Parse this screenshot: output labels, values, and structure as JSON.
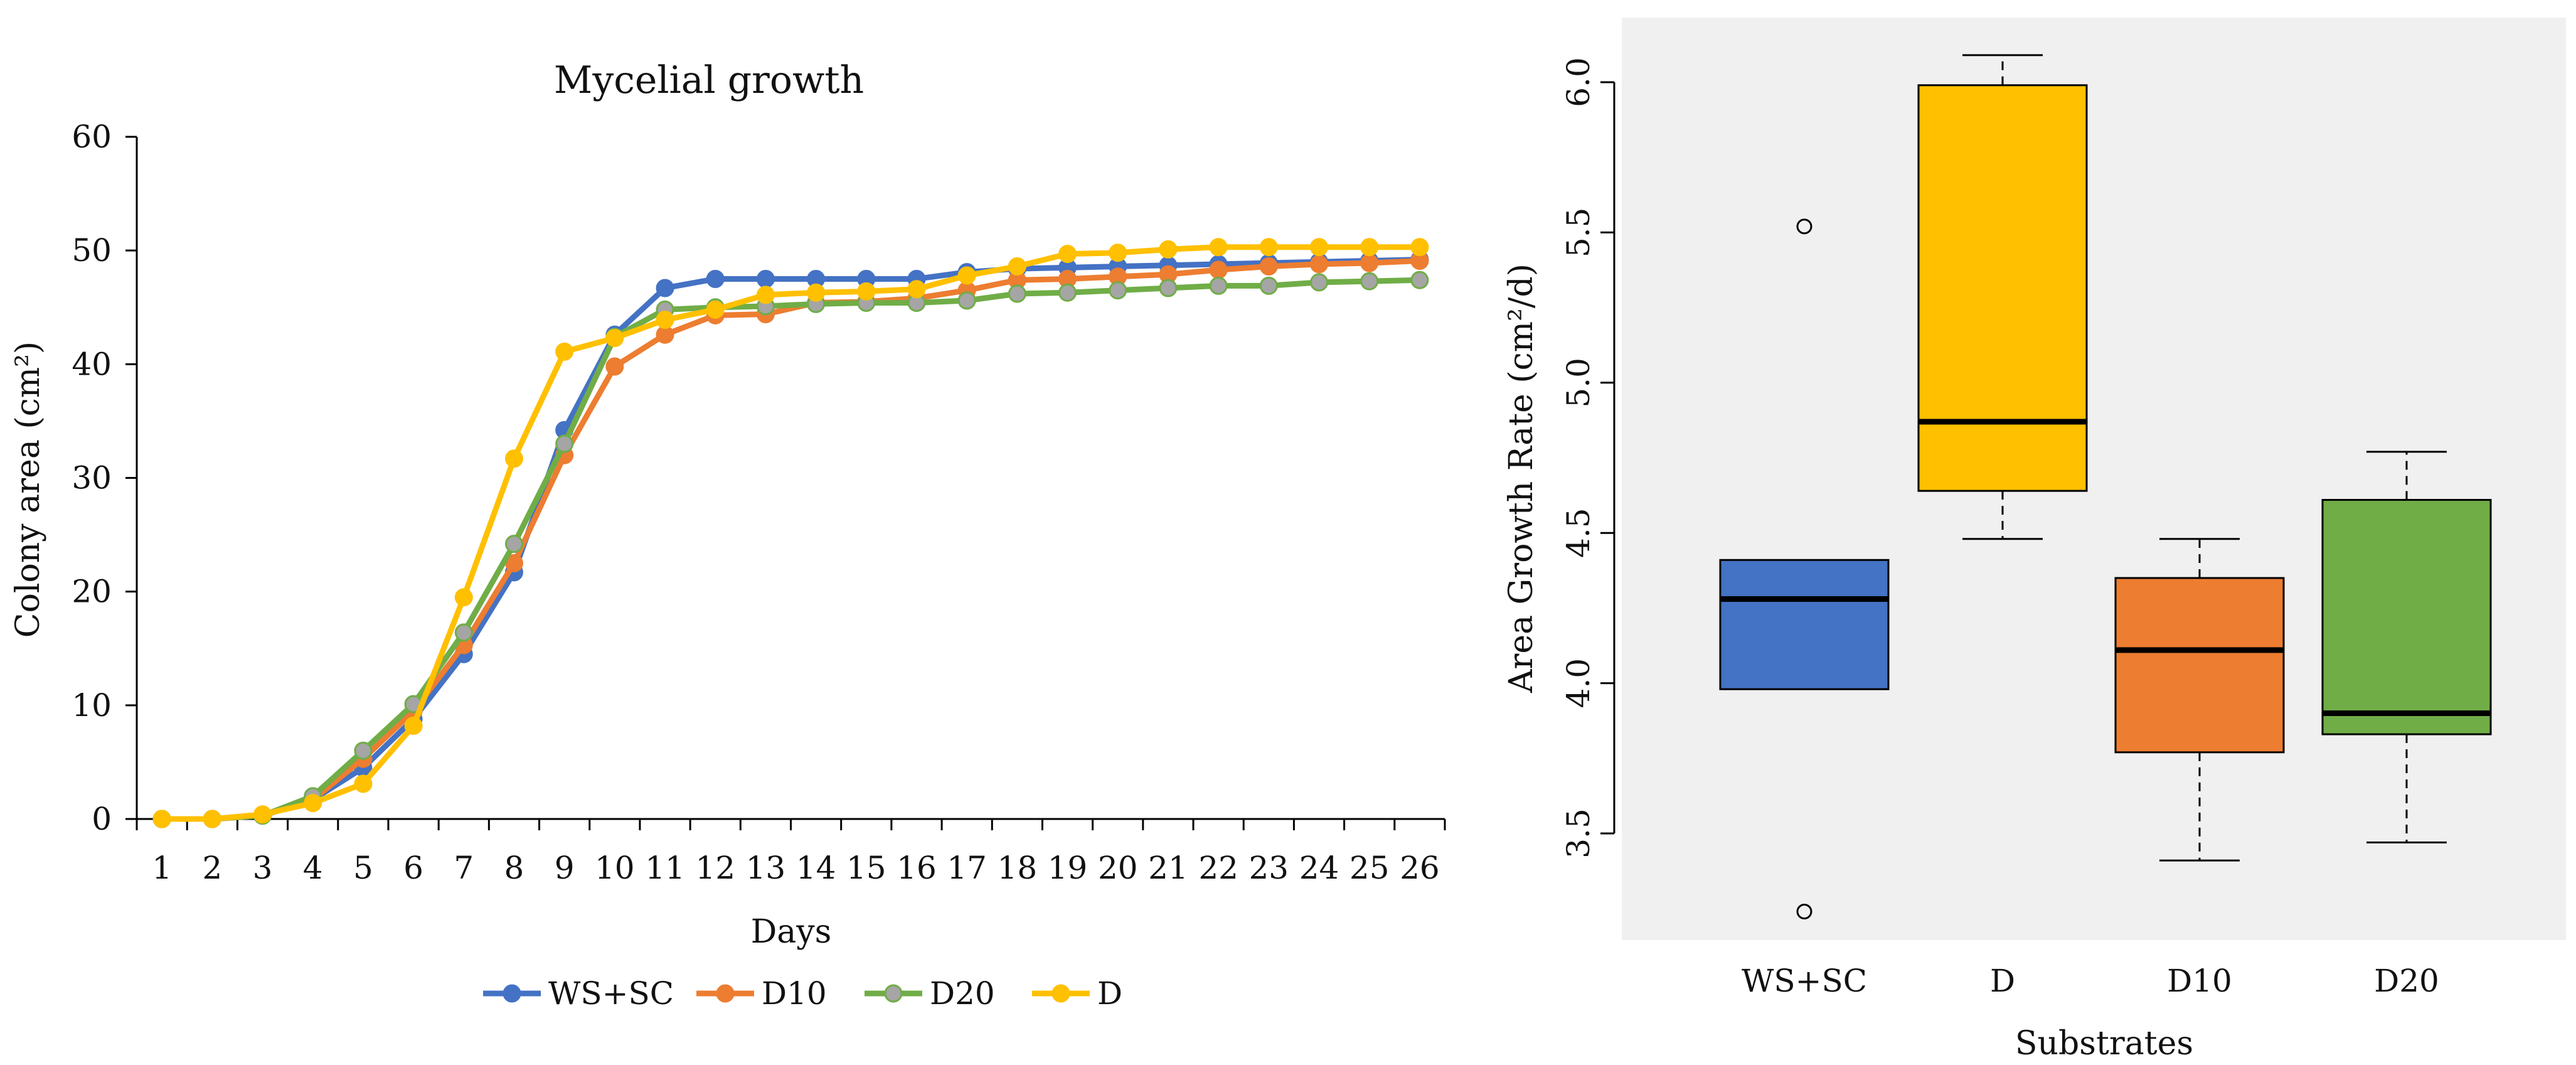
{
  "chart_data": [
    {
      "type": "line",
      "title": "Mycelial growth",
      "xlabel": "Days",
      "ylabel": "Colony area (cm²)",
      "ylim": [
        0,
        60
      ],
      "yticks": [
        0,
        10,
        20,
        30,
        40,
        50,
        60
      ],
      "x": [
        1,
        2,
        3,
        4,
        5,
        6,
        7,
        8,
        9,
        10,
        11,
        12,
        13,
        14,
        15,
        16,
        17,
        18,
        19,
        20,
        21,
        22,
        23,
        24,
        25,
        26
      ],
      "grid": false,
      "legend": "bottom",
      "series": [
        {
          "name": "WS+SC",
          "color": "#4472C4",
          "values": [
            0,
            0,
            0.3,
            1.7,
            4.5,
            8.8,
            14.5,
            21.7,
            34.2,
            42.6,
            46.7,
            47.5,
            47.5,
            47.5,
            47.5,
            47.5,
            48.1,
            48.4,
            48.5,
            48.6,
            48.7,
            48.8,
            48.9,
            49.0,
            49.1,
            49.2
          ]
        },
        {
          "name": "D10",
          "color": "#ED7D31",
          "values": [
            0,
            0,
            0.3,
            1.7,
            5.3,
            9.5,
            15.3,
            22.5,
            32.0,
            39.8,
            42.6,
            44.3,
            44.4,
            45.4,
            45.5,
            45.8,
            46.5,
            47.4,
            47.5,
            47.7,
            47.9,
            48.3,
            48.6,
            48.8,
            48.9,
            49.1
          ]
        },
        {
          "name": "D20",
          "color": "#70AD47",
          "marker": "#A5A5A5",
          "values": [
            0,
            0,
            0.3,
            2.0,
            6.0,
            10.1,
            16.4,
            24.2,
            33.0,
            42.4,
            44.8,
            45.0,
            45.1,
            45.3,
            45.4,
            45.4,
            45.6,
            46.2,
            46.3,
            46.5,
            46.7,
            46.9,
            46.9,
            47.2,
            47.3,
            47.4
          ]
        },
        {
          "name": "D",
          "color": "#FFC000",
          "values": [
            0,
            0,
            0.4,
            1.4,
            3.1,
            8.2,
            19.5,
            31.7,
            41.1,
            42.3,
            43.9,
            44.8,
            46.1,
            46.3,
            46.4,
            46.6,
            47.8,
            48.6,
            49.7,
            49.8,
            50.1,
            50.3,
            50.3,
            50.3,
            50.3,
            50.3
          ]
        }
      ]
    },
    {
      "type": "boxplot",
      "xlabel": "Substrates",
      "ylabel": "Area Growth Rate (cm²/d)",
      "ylim": [
        3.2,
        6.2
      ],
      "yticks": [
        3.5,
        4.0,
        4.5,
        5.0,
        5.5,
        6.0
      ],
      "categories": [
        "WS+SC",
        "D",
        "D10",
        "D20"
      ],
      "boxes": [
        {
          "name": "WS+SC",
          "color": "#4472C4",
          "whisker_low": 3.98,
          "q1": 3.98,
          "median": 4.28,
          "q3": 4.41,
          "whisker_high": 4.41,
          "outliers": [
            5.52,
            3.24
          ]
        },
        {
          "name": "D",
          "color": "#FFC000",
          "whisker_low": 4.48,
          "q1": 4.64,
          "median": 4.87,
          "q3": 5.99,
          "whisker_high": 6.09,
          "outliers": []
        },
        {
          "name": "D10",
          "color": "#ED7D31",
          "whisker_low": 3.41,
          "q1": 3.77,
          "median": 4.11,
          "q3": 4.35,
          "whisker_high": 4.48,
          "outliers": []
        },
        {
          "name": "D20",
          "color": "#70AD47",
          "whisker_low": 3.47,
          "q1": 3.83,
          "median": 3.9,
          "q3": 4.61,
          "whisker_high": 4.77,
          "outliers": []
        }
      ]
    }
  ]
}
